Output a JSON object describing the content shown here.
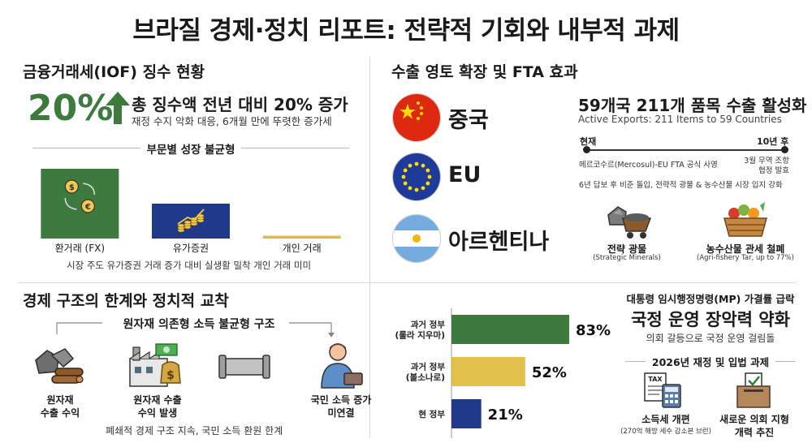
{
  "title": "브라질 경제·정치 리포트: 전략적 기회와 내부적 과제",
  "iof": {
    "heading": "금융거래세(IOF) 징수 현황",
    "big_pct": "20%",
    "headline": "총 징수액 전년 대비 20% 증가",
    "sub": "재정 수지 악화 대응, 6개월 만에 뚜렷한 증가세",
    "chart_title": "부문별 성장 불균형",
    "caption": "시장 주도 유가증권 거래 증가 대비 실생활 밀착 개인 거래 미미",
    "colors": {
      "green": "#3e7a3e",
      "navy": "#1f3a8a",
      "gold": "#e5b93a"
    }
  },
  "chart_data": {
    "type": "bar",
    "title": "부문별 성장 불균형",
    "categories": [
      "환거래 (FX)",
      "유가증권",
      "개인 거래"
    ],
    "values": [
      1.0,
      0.5,
      0.04
    ],
    "ylabel": "",
    "xlabel": ""
  },
  "export": {
    "heading": "수출 영토 확장 및 FTA 효과",
    "countries": [
      "중국",
      "EU",
      "아르헨티나"
    ],
    "headline": "59개국 211개 품목 수출 활성화",
    "sub_en": "Active Exports: 211 Items to 59 Countries",
    "timeline_now": "현재",
    "timeline_end": "10년 후",
    "timeline_desc": "메르코수르(Mercosul)-EU FTA 공식 사영",
    "timeline_right": "3월 무역 조항 협정 발효",
    "timeline_note": "6년 답보 후 비준 돌입, 전략적 광물 & 농수산물 시장 입지 강화",
    "items": [
      {
        "label": "전략 광물",
        "sub": "(Strategic Minerals)"
      },
      {
        "label": "농수산물 관세 철폐",
        "sub": "(Agri-fishery Tar, up to 77%)"
      }
    ]
  },
  "structure": {
    "heading": "경제 구조의 한계와 정치적 교착",
    "subhead": "원자재 의존형 소득 불균형 구조",
    "steps": [
      {
        "label1": "원자재",
        "label2": "수출 수익"
      },
      {
        "label1": "원자재 수출",
        "label2": "수익 발생"
      },
      {
        "label1": "",
        "label2": ""
      },
      {
        "label1": "국민 소득 증가",
        "label2": "미연결"
      }
    ],
    "caption": "폐쇄적 경제 구조 지속, 국민 소득 환원 한계"
  },
  "mp": {
    "bars": [
      {
        "label": "과거 정부\n(룰라 지우마)",
        "value": 83,
        "text": "83%",
        "color": "#3e7a3e"
      },
      {
        "label": "과거 정부\n(볼소나로)",
        "value": 52,
        "text": "52%",
        "color": "#e0c24a"
      },
      {
        "label": "현 정부",
        "value": 21,
        "text": "21%",
        "color": "#1f3a8a"
      }
    ],
    "top": "대통령 임시행정명령(MP) 가결률 급락",
    "headline": "국정 운영 장악력 약화",
    "sub": "의회 갈등으로 국정 운영 걸림돌",
    "task_head": "2026년 재정 및 입법 과제",
    "tasks": [
      {
        "label": "소득세 개편",
        "sub": "(270억 해방 세수 감소본 브런)"
      },
      {
        "label": "새로운 의회 지형",
        "sub": "개력 추진"
      }
    ],
    "tax_text": "TAX"
  }
}
